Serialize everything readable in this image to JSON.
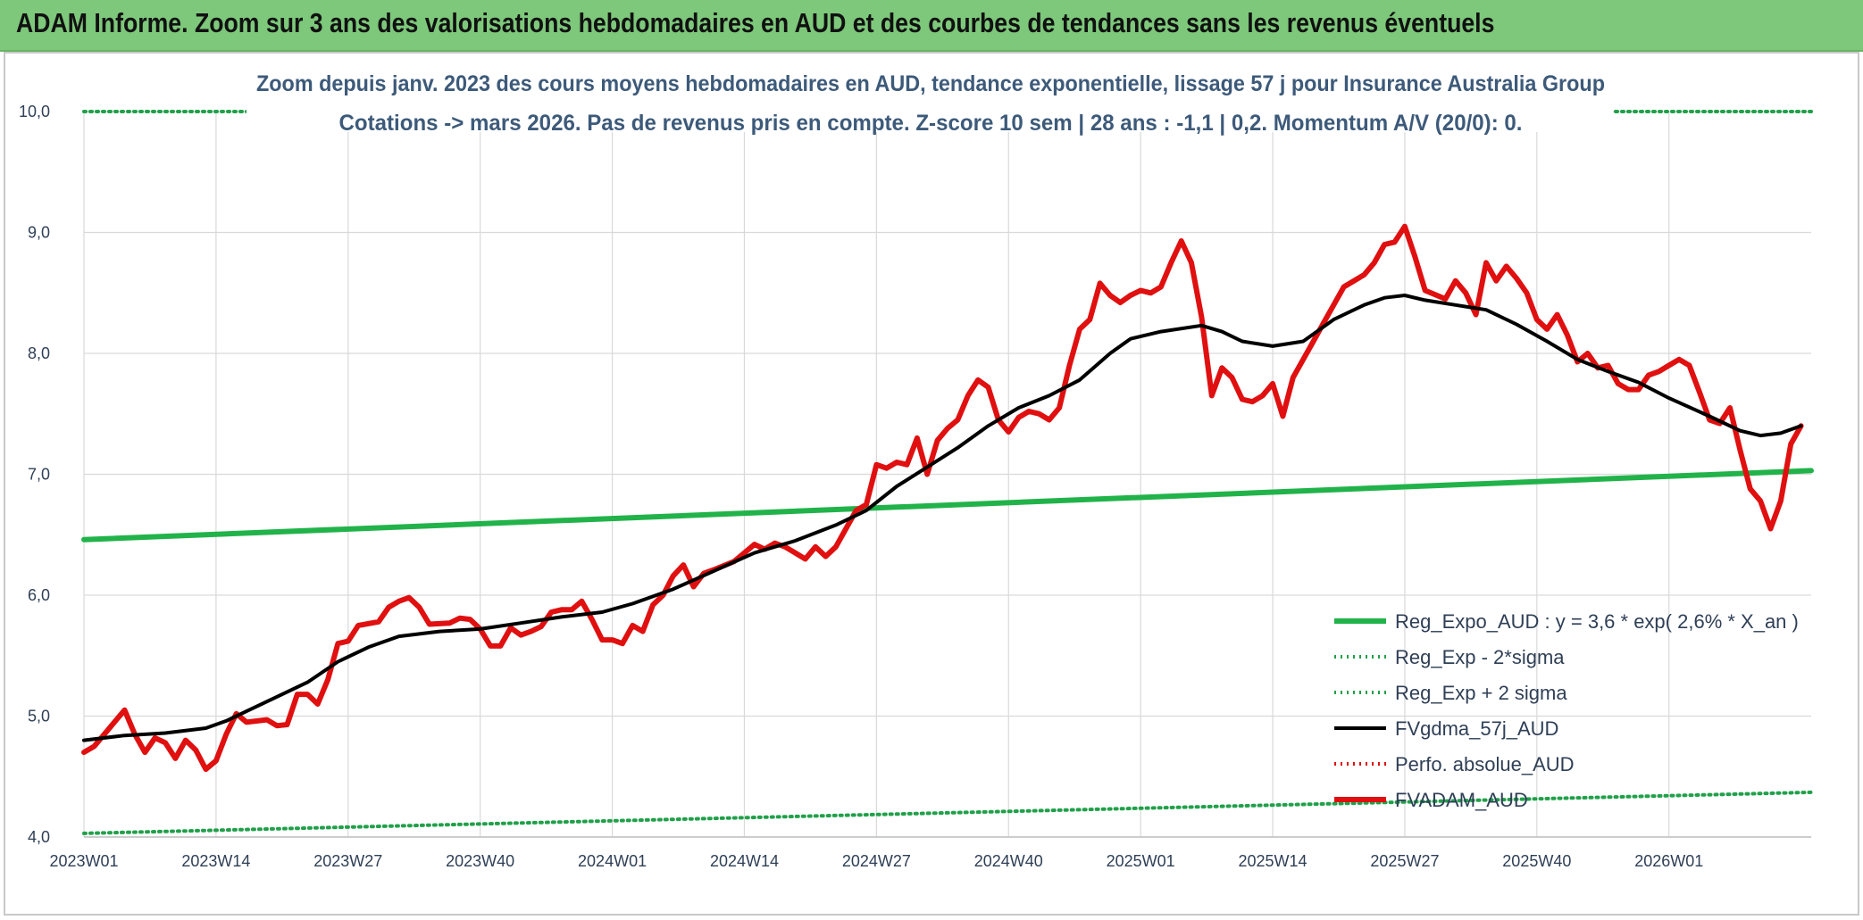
{
  "banner": {
    "title": "ADAM Informe. Zoom sur 3 ans des valorisations hebdomadaires en AUD et des courbes de tendances sans les revenus éventuels"
  },
  "colors": {
    "banner_bg": "#7dc87a",
    "reg_expo": "#21b34a",
    "dotted_green": "#21a04a",
    "fvgdma": "#000000",
    "perfo": "#e01010",
    "fvadam": "#e01010",
    "grid": "#d9d9d9",
    "title_text": "#3d5a7a"
  },
  "chart_data": {
    "type": "line",
    "title": "Zoom depuis janv. 2023 des cours moyens hebdomadaires en AUD, tendance exponentielle, lissage 57 j pour Insurance Australia Group",
    "subtitle": "Cotations -> mars 2026. Pas de revenus pris en compte. Z-score 10 sem | 28 ans : -1,1 | 0,2. Momentum A/V (20/0): 0.",
    "xlabel": "",
    "ylabel": "",
    "ylim": [
      4.0,
      10.0
    ],
    "yticks": [
      "4,0",
      "5,0",
      "6,0",
      "7,0",
      "8,0",
      "9,0",
      "10,0"
    ],
    "x_range_weeks": [
      0,
      170
    ],
    "xticks": [
      {
        "label": "2023W01",
        "week": 0
      },
      {
        "label": "2023W14",
        "week": 13
      },
      {
        "label": "2023W27",
        "week": 26
      },
      {
        "label": "2023W40",
        "week": 39
      },
      {
        "label": "2024W01",
        "week": 52
      },
      {
        "label": "2024W14",
        "week": 65
      },
      {
        "label": "2024W27",
        "week": 78
      },
      {
        "label": "2024W40",
        "week": 91
      },
      {
        "label": "2025W01",
        "week": 104
      },
      {
        "label": "2025W14",
        "week": 117
      },
      {
        "label": "2025W27",
        "week": 130
      },
      {
        "label": "2025W40",
        "week": 143
      },
      {
        "label": "2026W01",
        "week": 156
      }
    ],
    "grid": true,
    "legend_position": "bottom-right",
    "series": [
      {
        "name": "Reg_Expo_AUD : y = 3,6 * exp( 2,6% *  X_an )",
        "style": "solid-thick",
        "color": "#21b34a",
        "points": [
          [
            0,
            6.46
          ],
          [
            170,
            7.03
          ]
        ]
      },
      {
        "name": "Reg_Exp - 2*sigma",
        "style": "dotted",
        "color": "#21a04a",
        "points": [
          [
            0,
            4.03
          ],
          [
            170,
            4.37
          ]
        ]
      },
      {
        "name": "Reg_Exp + 2 sigma",
        "style": "dotted",
        "color": "#21a04a",
        "points": [
          [
            0,
            10.0
          ],
          [
            170,
            10.0
          ]
        ]
      },
      {
        "name": "FVgdma_57j_AUD",
        "style": "solid",
        "color": "#000000",
        "points": [
          [
            0,
            4.8
          ],
          [
            4,
            4.84
          ],
          [
            8,
            4.86
          ],
          [
            12,
            4.9
          ],
          [
            14,
            4.96
          ],
          [
            16,
            5.04
          ],
          [
            19,
            5.16
          ],
          [
            22,
            5.28
          ],
          [
            25,
            5.45
          ],
          [
            28,
            5.57
          ],
          [
            31,
            5.66
          ],
          [
            35,
            5.7
          ],
          [
            39,
            5.72
          ],
          [
            43,
            5.77
          ],
          [
            47,
            5.82
          ],
          [
            51,
            5.86
          ],
          [
            54,
            5.93
          ],
          [
            58,
            6.05
          ],
          [
            62,
            6.2
          ],
          [
            66,
            6.35
          ],
          [
            70,
            6.45
          ],
          [
            74,
            6.58
          ],
          [
            77,
            6.7
          ],
          [
            80,
            6.9
          ],
          [
            83,
            7.06
          ],
          [
            86,
            7.22
          ],
          [
            89,
            7.4
          ],
          [
            92,
            7.55
          ],
          [
            95,
            7.65
          ],
          [
            98,
            7.78
          ],
          [
            101,
            8.0
          ],
          [
            103,
            8.12
          ],
          [
            106,
            8.18
          ],
          [
            110,
            8.23
          ],
          [
            112,
            8.18
          ],
          [
            114,
            8.1
          ],
          [
            117,
            8.06
          ],
          [
            120,
            8.1
          ],
          [
            123,
            8.28
          ],
          [
            126,
            8.4
          ],
          [
            128,
            8.46
          ],
          [
            130,
            8.48
          ],
          [
            132,
            8.44
          ],
          [
            135,
            8.4
          ],
          [
            138,
            8.36
          ],
          [
            141,
            8.24
          ],
          [
            144,
            8.1
          ],
          [
            147,
            7.95
          ],
          [
            150,
            7.85
          ],
          [
            153,
            7.76
          ],
          [
            156,
            7.63
          ],
          [
            160,
            7.48
          ],
          [
            163,
            7.36
          ],
          [
            165,
            7.32
          ],
          [
            167,
            7.34
          ],
          [
            169,
            7.4
          ]
        ]
      },
      {
        "name": "Perfo. absolue_AUD",
        "style": "dotted",
        "color": "#e01010",
        "points": []
      },
      {
        "name": "FVADAM_AUD",
        "style": "solid-thick",
        "color": "#e01010",
        "points": [
          [
            0,
            4.7
          ],
          [
            1,
            4.75
          ],
          [
            3,
            4.95
          ],
          [
            4,
            5.05
          ],
          [
            5,
            4.85
          ],
          [
            6,
            4.7
          ],
          [
            7,
            4.82
          ],
          [
            8,
            4.78
          ],
          [
            9,
            4.65
          ],
          [
            10,
            4.8
          ],
          [
            11,
            4.72
          ],
          [
            12,
            4.56
          ],
          [
            13,
            4.63
          ],
          [
            14,
            4.85
          ],
          [
            15,
            5.02
          ],
          [
            16,
            4.95
          ],
          [
            18,
            4.97
          ],
          [
            19,
            4.92
          ],
          [
            20,
            4.93
          ],
          [
            21,
            5.18
          ],
          [
            22,
            5.18
          ],
          [
            23,
            5.1
          ],
          [
            24,
            5.3
          ],
          [
            25,
            5.6
          ],
          [
            26,
            5.62
          ],
          [
            27,
            5.75
          ],
          [
            29,
            5.78
          ],
          [
            30,
            5.9
          ],
          [
            31,
            5.95
          ],
          [
            32,
            5.98
          ],
          [
            33,
            5.9
          ],
          [
            34,
            5.76
          ],
          [
            36,
            5.77
          ],
          [
            37,
            5.81
          ],
          [
            38,
            5.8
          ],
          [
            39,
            5.72
          ],
          [
            40,
            5.58
          ],
          [
            41,
            5.58
          ],
          [
            42,
            5.73
          ],
          [
            43,
            5.67
          ],
          [
            44,
            5.7
          ],
          [
            45,
            5.74
          ],
          [
            46,
            5.86
          ],
          [
            47,
            5.88
          ],
          [
            48,
            5.88
          ],
          [
            49,
            5.95
          ],
          [
            50,
            5.8
          ],
          [
            51,
            5.63
          ],
          [
            52,
            5.63
          ],
          [
            53,
            5.6
          ],
          [
            54,
            5.75
          ],
          [
            55,
            5.7
          ],
          [
            56,
            5.92
          ],
          [
            57,
            6.0
          ],
          [
            58,
            6.16
          ],
          [
            59,
            6.25
          ],
          [
            60,
            6.07
          ],
          [
            61,
            6.18
          ],
          [
            62,
            6.21
          ],
          [
            64,
            6.28
          ],
          [
            65,
            6.35
          ],
          [
            66,
            6.42
          ],
          [
            67,
            6.38
          ],
          [
            68,
            6.43
          ],
          [
            69,
            6.4
          ],
          [
            70,
            6.35
          ],
          [
            71,
            6.3
          ],
          [
            72,
            6.4
          ],
          [
            73,
            6.32
          ],
          [
            74,
            6.4
          ],
          [
            75,
            6.55
          ],
          [
            76,
            6.7
          ],
          [
            77,
            6.75
          ],
          [
            78,
            7.08
          ],
          [
            79,
            7.05
          ],
          [
            80,
            7.1
          ],
          [
            81,
            7.08
          ],
          [
            82,
            7.3
          ],
          [
            83,
            7.0
          ],
          [
            84,
            7.28
          ],
          [
            85,
            7.38
          ],
          [
            86,
            7.45
          ],
          [
            87,
            7.65
          ],
          [
            88,
            7.78
          ],
          [
            89,
            7.72
          ],
          [
            90,
            7.45
          ],
          [
            91,
            7.35
          ],
          [
            92,
            7.47
          ],
          [
            93,
            7.52
          ],
          [
            94,
            7.5
          ],
          [
            95,
            7.45
          ],
          [
            96,
            7.55
          ],
          [
            97,
            7.9
          ],
          [
            98,
            8.2
          ],
          [
            99,
            8.28
          ],
          [
            100,
            8.58
          ],
          [
            101,
            8.48
          ],
          [
            102,
            8.42
          ],
          [
            103,
            8.48
          ],
          [
            104,
            8.52
          ],
          [
            105,
            8.5
          ],
          [
            106,
            8.55
          ],
          [
            107,
            8.75
          ],
          [
            108,
            8.93
          ],
          [
            109,
            8.75
          ],
          [
            110,
            8.3
          ],
          [
            111,
            7.65
          ],
          [
            112,
            7.88
          ],
          [
            113,
            7.8
          ],
          [
            114,
            7.62
          ],
          [
            115,
            7.6
          ],
          [
            116,
            7.65
          ],
          [
            117,
            7.75
          ],
          [
            118,
            7.48
          ],
          [
            119,
            7.8
          ],
          [
            120,
            7.95
          ],
          [
            121,
            8.1
          ],
          [
            122,
            8.25
          ],
          [
            123,
            8.4
          ],
          [
            124,
            8.55
          ],
          [
            126,
            8.65
          ],
          [
            127,
            8.75
          ],
          [
            128,
            8.9
          ],
          [
            129,
            8.92
          ],
          [
            130,
            9.05
          ],
          [
            131,
            8.8
          ],
          [
            132,
            8.52
          ],
          [
            134,
            8.45
          ],
          [
            135,
            8.6
          ],
          [
            136,
            8.5
          ],
          [
            137,
            8.32
          ],
          [
            138,
            8.75
          ],
          [
            139,
            8.6
          ],
          [
            140,
            8.72
          ],
          [
            141,
            8.62
          ],
          [
            142,
            8.5
          ],
          [
            143,
            8.28
          ],
          [
            144,
            8.2
          ],
          [
            145,
            8.32
          ],
          [
            146,
            8.15
          ],
          [
            147,
            7.93
          ],
          [
            148,
            8.0
          ],
          [
            149,
            7.88
          ],
          [
            150,
            7.9
          ],
          [
            151,
            7.75
          ],
          [
            152,
            7.7
          ],
          [
            153,
            7.7
          ],
          [
            154,
            7.82
          ],
          [
            155,
            7.85
          ],
          [
            156,
            7.9
          ],
          [
            157,
            7.95
          ],
          [
            158,
            7.9
          ],
          [
            159,
            7.68
          ],
          [
            160,
            7.45
          ],
          [
            161,
            7.42
          ],
          [
            162,
            7.55
          ],
          [
            163,
            7.2
          ],
          [
            164,
            6.88
          ],
          [
            165,
            6.78
          ],
          [
            166,
            6.55
          ],
          [
            167,
            6.78
          ],
          [
            168,
            7.25
          ],
          [
            169,
            7.4
          ]
        ]
      }
    ]
  }
}
